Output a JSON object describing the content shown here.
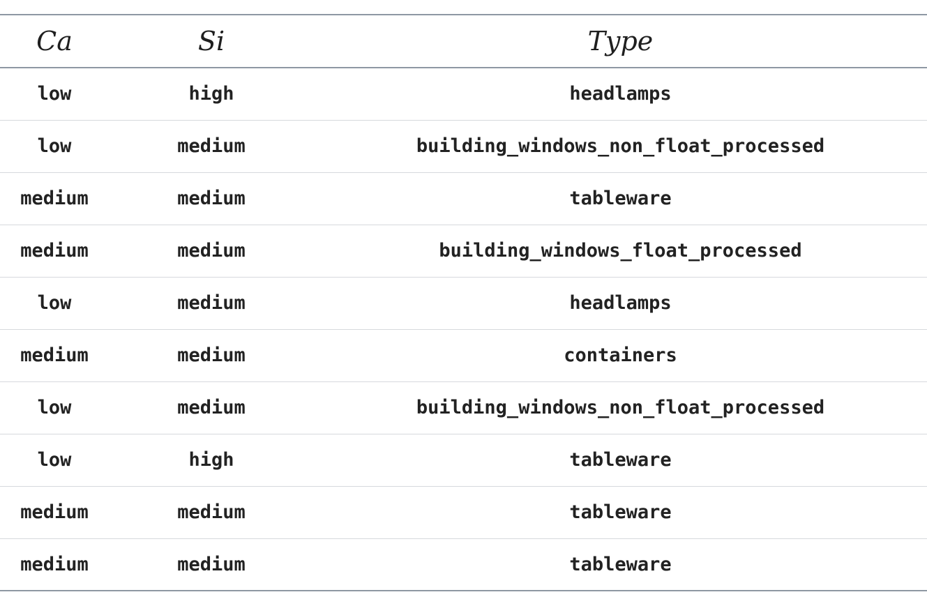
{
  "table": {
    "headers": {
      "ca": "Ca",
      "si": "Si",
      "type": "Type"
    },
    "rows": [
      {
        "ca": "low",
        "si": "high",
        "type": "headlamps"
      },
      {
        "ca": "low",
        "si": "medium",
        "type": "building_windows_non_float_processed"
      },
      {
        "ca": "medium",
        "si": "medium",
        "type": "tableware"
      },
      {
        "ca": "medium",
        "si": "medium",
        "type": "building_windows_float_processed"
      },
      {
        "ca": "low",
        "si": "medium",
        "type": "headlamps"
      },
      {
        "ca": "medium",
        "si": "medium",
        "type": "containers"
      },
      {
        "ca": "low",
        "si": "medium",
        "type": "building_windows_non_float_processed"
      },
      {
        "ca": "low",
        "si": "high",
        "type": "tableware"
      },
      {
        "ca": "medium",
        "si": "medium",
        "type": "tableware"
      },
      {
        "ca": "medium",
        "si": "medium",
        "type": "tableware"
      }
    ]
  }
}
